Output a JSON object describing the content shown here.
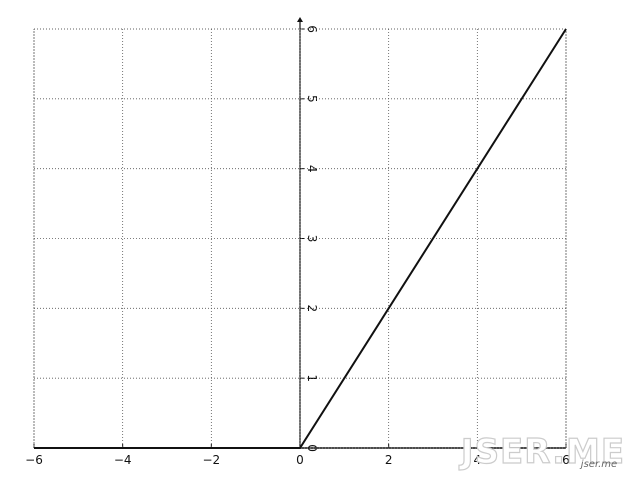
{
  "chart_data": {
    "type": "line",
    "x": [
      -6,
      0,
      6
    ],
    "series": [
      {
        "color": "#111111",
        "values": [
          0,
          0,
          6
        ]
      }
    ],
    "xlim": [
      -6,
      6
    ],
    "ylim": [
      0,
      6
    ],
    "xticks": [
      {
        "value": -6,
        "label": "−6"
      },
      {
        "value": -4,
        "label": "−4"
      },
      {
        "value": -2,
        "label": "−2"
      },
      0,
      2,
      4,
      6
    ],
    "yticks": [
      0,
      1,
      2,
      3,
      4,
      5,
      6
    ],
    "grid": true,
    "annotations": [
      "JSER.ME",
      "jser.me"
    ]
  }
}
